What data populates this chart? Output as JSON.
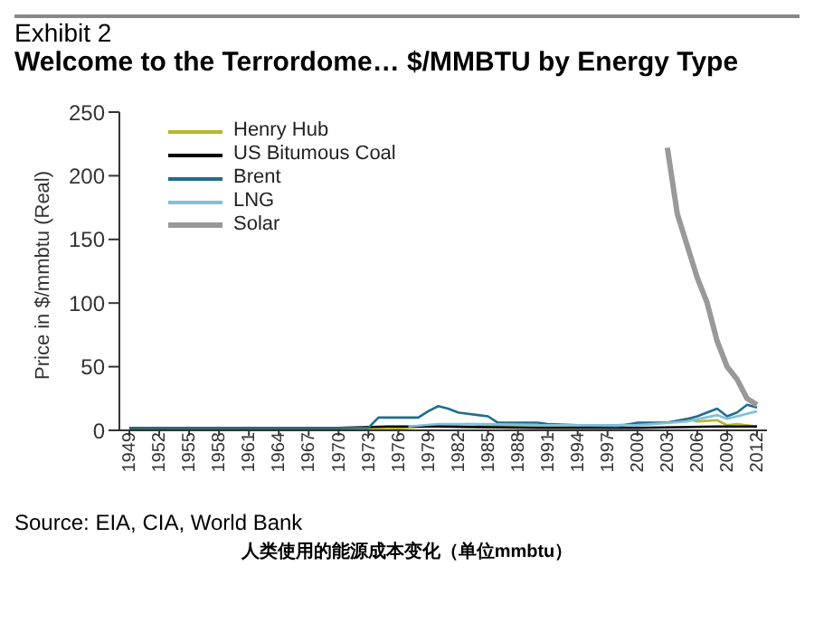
{
  "chart_data": {
    "type": "line",
    "subtitle": "Exhibit 2",
    "title": "Welcome to the Terrordome… $/MMBTU by Energy Type",
    "ylabel": "Price in $/mmbtu (Real)",
    "xlim": [
      1948,
      2013
    ],
    "xticks": [
      1949,
      1952,
      1955,
      1958,
      1961,
      1964,
      1967,
      1970,
      1973,
      1976,
      1979,
      1982,
      1985,
      1988,
      1991,
      1994,
      1997,
      2000,
      2003,
      2006,
      2009,
      2012
    ],
    "ylim": [
      0,
      250
    ],
    "yticks": [
      0,
      50,
      100,
      150,
      200,
      250
    ],
    "grid": false,
    "legend": "top left",
    "marker": "none",
    "line_style": "solid",
    "series": [
      {
        "name": "Henry Hub",
        "color": "#b5b82a",
        "x": [
          1949,
          1970,
          1975,
          1979,
          1983,
          1985,
          1987,
          1995,
          2000,
          2003,
          2005,
          2006,
          2008,
          2009,
          2010,
          2012
        ],
        "values": [
          1,
          1,
          1,
          3,
          5,
          4,
          3,
          3,
          5,
          6,
          9,
          7,
          8,
          4,
          5,
          3
        ]
      },
      {
        "name": "US Bitumous Coal",
        "color": "#000000",
        "x": [
          1949,
          1970,
          1975,
          1980,
          1990,
          2000,
          2008,
          2012
        ],
        "values": [
          2,
          2,
          3,
          3,
          2,
          2,
          3,
          3
        ]
      },
      {
        "name": "Brent",
        "color": "#1f6e8c",
        "x": [
          1949,
          1960,
          1970,
          1973,
          1974,
          1978,
          1979,
          1980,
          1981,
          1982,
          1984,
          1985,
          1986,
          1990,
          1991,
          1994,
          1998,
          2000,
          2003,
          2005,
          2006,
          2008,
          2009,
          2010,
          2011,
          2012
        ],
        "values": [
          2,
          2,
          2,
          2,
          10,
          10,
          15,
          19,
          17,
          14,
          12,
          11,
          6,
          6,
          5,
          4,
          3,
          6,
          6,
          9,
          11,
          17,
          11,
          14,
          20,
          18
        ]
      },
      {
        "name": "LNG",
        "color": "#7fc0dc",
        "x": [
          1977,
          1980,
          1985,
          1990,
          1995,
          2000,
          2005,
          2008,
          2009,
          2010,
          2012
        ],
        "values": [
          3,
          5,
          5,
          4,
          4,
          4,
          7,
          12,
          9,
          11,
          15
        ]
      },
      {
        "name": "Solar",
        "color": "#999999",
        "x": [
          2003,
          2004,
          2005,
          2006,
          2007,
          2008,
          2009,
          2010,
          2011,
          2012
        ],
        "values": [
          222,
          170,
          145,
          120,
          100,
          70,
          50,
          40,
          25,
          20
        ]
      }
    ],
    "annotations": [
      "Source: EIA, CIA, World Bank",
      "人类使用的能源成本变化（单位mmbtu）"
    ]
  }
}
